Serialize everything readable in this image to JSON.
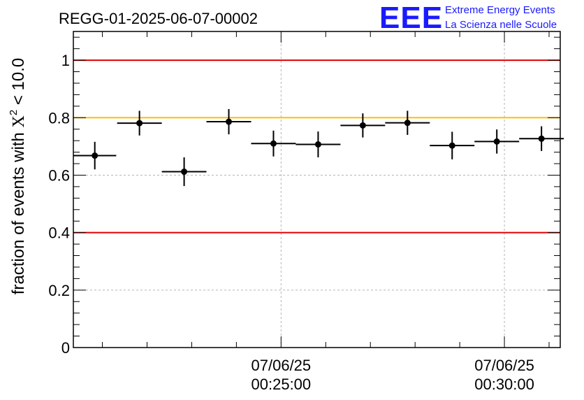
{
  "title": "REGG-01-2025-06-07-00002",
  "logo": {
    "mark": "EEE",
    "line1": "Extreme Energy Events",
    "line2": "La Scienza nelle Scuole",
    "color": "#1a1aff"
  },
  "chart_data": {
    "type": "scatter",
    "ylabel_prefix": "fraction of events with ",
    "ylabel_chi": "X",
    "ylabel_sup": "2",
    "ylabel_suffix": " < 10.0",
    "xlabel": "",
    "ylim": [
      0,
      1.1
    ],
    "yticks": [
      {
        "value": 0,
        "label": "0"
      },
      {
        "value": 0.2,
        "label": "0.2"
      },
      {
        "value": 0.4,
        "label": "0.4"
      },
      {
        "value": 0.6,
        "label": "0.6"
      },
      {
        "value": 0.8,
        "label": "0.8"
      },
      {
        "value": 1.0,
        "label": "1"
      }
    ],
    "x_unit": "minutes after 00:20:00 on 07/06/25",
    "xlim": [
      0.35,
      11.25
    ],
    "xticks": [
      {
        "value": 5,
        "date": "07/06/25",
        "time": "00:25:00"
      },
      {
        "value": 10,
        "date": "07/06/25",
        "time": "00:30:00"
      }
    ],
    "grid": true,
    "reference_lines": [
      {
        "y": 1.0,
        "color": "#e00000"
      },
      {
        "y": 0.8,
        "color": "#ffc000"
      },
      {
        "y": 0.4,
        "color": "#e00000"
      }
    ],
    "points": [
      {
        "x": 0.83,
        "xerr": 0.48,
        "y": 0.668,
        "yerr": 0.048
      },
      {
        "x": 1.83,
        "xerr": 0.5,
        "y": 0.781,
        "yerr": 0.043
      },
      {
        "x": 2.83,
        "xerr": 0.5,
        "y": 0.612,
        "yerr": 0.05
      },
      {
        "x": 3.83,
        "xerr": 0.5,
        "y": 0.786,
        "yerr": 0.044
      },
      {
        "x": 4.83,
        "xerr": 0.5,
        "y": 0.71,
        "yerr": 0.045
      },
      {
        "x": 5.83,
        "xerr": 0.5,
        "y": 0.707,
        "yerr": 0.045
      },
      {
        "x": 6.83,
        "xerr": 0.5,
        "y": 0.773,
        "yerr": 0.042
      },
      {
        "x": 7.83,
        "xerr": 0.5,
        "y": 0.782,
        "yerr": 0.042
      },
      {
        "x": 8.83,
        "xerr": 0.5,
        "y": 0.703,
        "yerr": 0.048
      },
      {
        "x": 9.83,
        "xerr": 0.5,
        "y": 0.717,
        "yerr": 0.042
      },
      {
        "x": 10.83,
        "xerr": 0.5,
        "y": 0.727,
        "yerr": 0.043
      }
    ]
  }
}
